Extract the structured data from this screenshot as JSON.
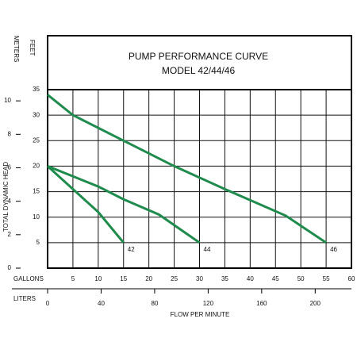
{
  "chart_data": {
    "type": "line",
    "title": "PUMP PERFORMANCE CURVE",
    "subtitle": "MODEL 42/44/46",
    "xlabel": "FLOW PER MINUTE",
    "x_unit_label": "GALLONS",
    "x2_unit_label": "LITERS",
    "ylabel": "TOTAL DYNAMIC HEAD",
    "y_unit_label": "FEET",
    "y2_unit_label": "METERS",
    "xlim": [
      0,
      60
    ],
    "xticks": [
      5,
      10,
      15,
      20,
      25,
      30,
      35,
      40,
      45,
      50,
      55,
      60
    ],
    "x2lim": [
      0,
      227.1
    ],
    "x2ticks": [
      0,
      40,
      80,
      120,
      160,
      200
    ],
    "ylim": [
      0,
      35
    ],
    "yticks": [
      5,
      10,
      15,
      20,
      25,
      30,
      35
    ],
    "y2lim": [
      0,
      10.67
    ],
    "y2ticks": [
      0,
      2,
      4,
      6,
      8,
      10
    ],
    "grid": true,
    "series": [
      {
        "name": "42",
        "color": "#1f8b4c",
        "x": [
          0,
          5,
          10,
          15
        ],
        "values": [
          20,
          15.5,
          11,
          5
        ]
      },
      {
        "name": "44",
        "color": "#1f8b4c",
        "x": [
          0,
          5,
          10,
          15,
          22,
          30
        ],
        "values": [
          20,
          18,
          16,
          13.5,
          10.5,
          5
        ]
      },
      {
        "name": "46",
        "color": "#1f8b4c",
        "x": [
          0,
          5,
          15,
          25,
          35,
          47,
          55
        ],
        "values": [
          34,
          30,
          25,
          20,
          15.5,
          10.3,
          5
        ]
      }
    ]
  }
}
